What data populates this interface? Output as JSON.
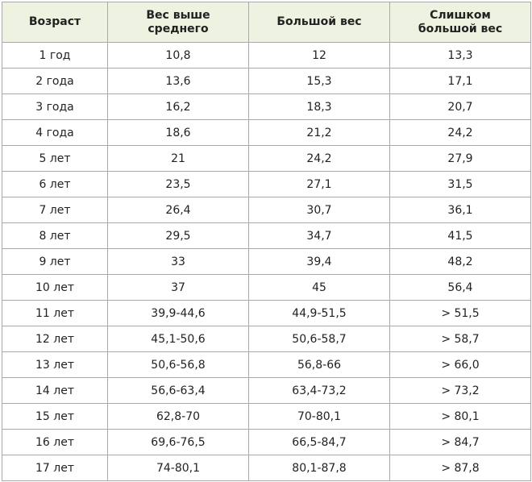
{
  "table": {
    "header": [
      "Возраст",
      "Вес выше среднего",
      "Большой вес",
      "Слишком большой вес"
    ],
    "rows": [
      [
        "1 год",
        "10,8",
        "12",
        "13,3"
      ],
      [
        "2 года",
        "13,6",
        "15,3",
        "17,1"
      ],
      [
        "3 года",
        "16,2",
        "18,3",
        "20,7"
      ],
      [
        "4 года",
        "18,6",
        "21,2",
        "24,2"
      ],
      [
        "5 лет",
        "21",
        "24,2",
        "27,9"
      ],
      [
        "6 лет",
        "23,5",
        "27,1",
        "31,5"
      ],
      [
        "7 лет",
        "26,4",
        "30,7",
        "36,1"
      ],
      [
        "8 лет",
        "29,5",
        "34,7",
        "41,5"
      ],
      [
        "9 лет",
        "33",
        "39,4",
        "48,2"
      ],
      [
        "10 лет",
        "37",
        "45",
        "56,4"
      ],
      [
        "11 лет",
        "39,9-44,6",
        "44,9-51,5",
        "> 51,5"
      ],
      [
        "12 лет",
        "45,1-50,6",
        "50,6-58,7",
        "> 58,7"
      ],
      [
        "13 лет",
        "50,6-56,8",
        "56,8-66",
        "> 66,0"
      ],
      [
        "14 лет",
        "56,6-63,4",
        "63,4-73,2",
        "> 73,2"
      ],
      [
        "15 лет",
        "62,8-70",
        "70-80,1",
        "> 80,1"
      ],
      [
        "16 лет",
        "69,6-76,5",
        "66,5-84,7",
        "> 84,7"
      ],
      [
        "17 лет",
        "74-80,1",
        "80,1-87,8",
        "> 87,8"
      ]
    ]
  }
}
